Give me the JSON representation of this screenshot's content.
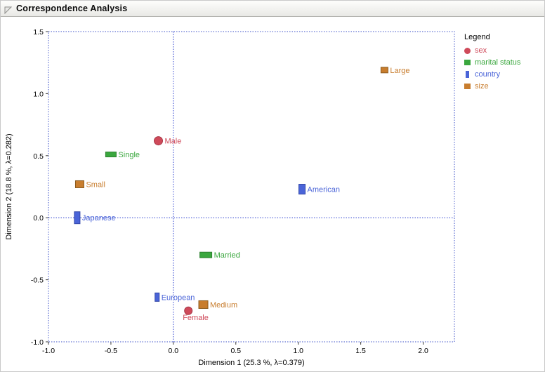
{
  "window": {
    "title": "Correspondence Analysis"
  },
  "legend": {
    "title": "Legend",
    "items": [
      {
        "label": "sex",
        "color": "#cf4a5a",
        "shape": "circle"
      },
      {
        "label": "marital status",
        "color": "#3aa73e",
        "shape": "square"
      },
      {
        "label": "country",
        "color": "#4a64d8",
        "shape": "rect-tall"
      },
      {
        "label": "size",
        "color": "#c87d2e",
        "shape": "square"
      }
    ]
  },
  "chart_data": {
    "type": "scatter",
    "title": "Correspondence Analysis",
    "xlabel": "Dimension 1  (25.3 %, λ=0.379)",
    "ylabel": "Dimension 2  (18.8 %, λ=0.282)",
    "xlim": [
      -1.0,
      2.25
    ],
    "ylim": [
      -1.0,
      1.5
    ],
    "x_ticks": [
      -1.0,
      -0.5,
      0.0,
      0.5,
      1.0,
      1.5,
      2.0
    ],
    "y_ticks": [
      -1.0,
      -0.5,
      0.0,
      0.5,
      1.0,
      1.5
    ],
    "grid": false,
    "legend_position": "right",
    "frame_color": "#3c50c8",
    "reference_line_color": "#2a3ed0",
    "reference_lines": {
      "x": 0.0,
      "y": 0.0,
      "style": "dotted"
    },
    "series": [
      {
        "name": "sex",
        "color": "#cf4a5a",
        "stroke": "#a83848",
        "shape": "circle",
        "points": [
          {
            "label": "Male",
            "x": -0.12,
            "y": 0.62,
            "w": 12,
            "h": 12
          },
          {
            "label": "Female",
            "x": 0.12,
            "y": -0.75,
            "w": 11,
            "h": 11,
            "label_dx": -8,
            "label_dy": 13
          }
        ]
      },
      {
        "name": "marital status",
        "color": "#3aa73e",
        "stroke": "#2d7f2f",
        "shape": "rect",
        "points": [
          {
            "label": "Single",
            "x": -0.5,
            "y": 0.51,
            "w": 15,
            "h": 7
          },
          {
            "label": "Married",
            "x": 0.26,
            "y": -0.3,
            "w": 17,
            "h": 8
          }
        ]
      },
      {
        "name": "country",
        "color": "#4a64d8",
        "stroke": "#3347a8",
        "shape": "rect",
        "points": [
          {
            "label": "Japanese",
            "x": -0.77,
            "y": 0.0,
            "w": 8,
            "h": 17
          },
          {
            "label": "American",
            "x": 1.03,
            "y": 0.23,
            "w": 9,
            "h": 14
          },
          {
            "label": "European",
            "x": -0.13,
            "y": -0.64,
            "w": 6,
            "h": 12
          }
        ]
      },
      {
        "name": "size",
        "color": "#c87d2e",
        "stroke": "#8a5a1e",
        "shape": "rect",
        "points": [
          {
            "label": "Small",
            "x": -0.75,
            "y": 0.27,
            "w": 12,
            "h": 10
          },
          {
            "label": "Large",
            "x": 1.69,
            "y": 1.19,
            "w": 10,
            "h": 8
          },
          {
            "label": "Medium",
            "x": 0.24,
            "y": -0.7,
            "w": 13,
            "h": 11
          }
        ]
      }
    ]
  }
}
